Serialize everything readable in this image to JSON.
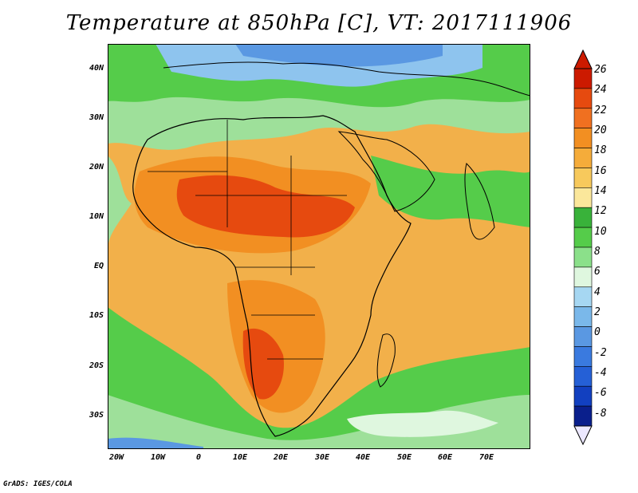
{
  "title": "Temperature at 850hPa [C], VT: 2017111906",
  "credit": "GrADS: IGES/COLA",
  "map": {
    "lat_labels": [
      "40N",
      "30N",
      "20N",
      "10N",
      "EQ",
      "10S",
      "20S",
      "30S"
    ],
    "lon_labels": [
      "20W",
      "10W",
      "0",
      "10E",
      "20E",
      "30E",
      "40E",
      "50E",
      "60E",
      "70E"
    ]
  },
  "colorbar": {
    "labels": [
      "26",
      "24",
      "22",
      "20",
      "18",
      "16",
      "14",
      "12",
      "10",
      "8",
      "6",
      "4",
      "2",
      "0",
      "-2",
      "-4",
      "-6",
      "-8"
    ],
    "colors": [
      "#cc1a00",
      "#e64a0f",
      "#f07020",
      "#f28f22",
      "#f5ac3a",
      "#f7c95c",
      "#fbe79b",
      "#39b23a",
      "#55cc4a",
      "#8be08a",
      "#dff7df",
      "#a6d7f2",
      "#7ab8ea",
      "#5a98e2",
      "#3a7adf",
      "#2560d6",
      "#1240c0",
      "#0a1f8c"
    ]
  }
}
